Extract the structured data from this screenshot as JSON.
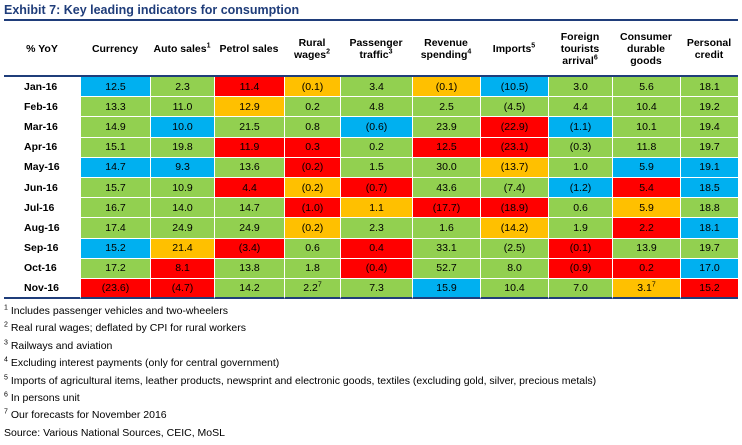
{
  "title": "Exhibit 7: Key leading indicators for consumption",
  "colors": {
    "green": "#92d050",
    "blue": "#00b0f0",
    "red": "#ff0000",
    "orange": "#ffc000",
    "title": "#1f3d7a"
  },
  "headers": [
    {
      "label": "% YoY",
      "sup": ""
    },
    {
      "label": "Currency",
      "sup": ""
    },
    {
      "label": "Auto sales",
      "sup": "1"
    },
    {
      "label": "Petrol sales",
      "sup": ""
    },
    {
      "label": "Rural wages",
      "sup": "2"
    },
    {
      "label": "Passenger traffic",
      "sup": "3"
    },
    {
      "label": "Revenue spending",
      "sup": "4"
    },
    {
      "label": "Imports",
      "sup": "5"
    },
    {
      "label": "Foreign tourists arrival",
      "sup": "6"
    },
    {
      "label": "Consumer durable goods",
      "sup": ""
    },
    {
      "label": "Personal credit",
      "sup": ""
    }
  ],
  "rows": [
    {
      "month": "Jan-16",
      "cells": [
        [
          "12.5",
          "b"
        ],
        [
          "2.3",
          "g"
        ],
        [
          "11.4",
          "r"
        ],
        [
          "(0.1)",
          "o"
        ],
        [
          "3.4",
          "g"
        ],
        [
          "(0.1)",
          "o"
        ],
        [
          "(10.5)",
          "b"
        ],
        [
          "3.0",
          "g"
        ],
        [
          "5.6",
          "g"
        ],
        [
          "18.1",
          "g"
        ]
      ]
    },
    {
      "month": "Feb-16",
      "cells": [
        [
          "13.3",
          "g"
        ],
        [
          "11.0",
          "g"
        ],
        [
          "12.9",
          "o"
        ],
        [
          "0.2",
          "g"
        ],
        [
          "4.8",
          "g"
        ],
        [
          "2.5",
          "g"
        ],
        [
          "(4.5)",
          "g"
        ],
        [
          "4.4",
          "g"
        ],
        [
          "10.4",
          "g"
        ],
        [
          "19.2",
          "g"
        ]
      ]
    },
    {
      "month": "Mar-16",
      "cells": [
        [
          "14.9",
          "g"
        ],
        [
          "10.0",
          "b"
        ],
        [
          "21.5",
          "g"
        ],
        [
          "0.8",
          "g"
        ],
        [
          "(0.6)",
          "b"
        ],
        [
          "23.9",
          "g"
        ],
        [
          "(22.9)",
          "r"
        ],
        [
          "(1.1)",
          "b"
        ],
        [
          "10.1",
          "g"
        ],
        [
          "19.4",
          "g"
        ]
      ]
    },
    {
      "month": "Apr-16",
      "cells": [
        [
          "15.1",
          "g"
        ],
        [
          "19.8",
          "g"
        ],
        [
          "11.9",
          "r"
        ],
        [
          "0.3",
          "r"
        ],
        [
          "0.2",
          "g"
        ],
        [
          "12.5",
          "r"
        ],
        [
          "(23.1)",
          "r"
        ],
        [
          "(0.3)",
          "g"
        ],
        [
          "11.8",
          "g"
        ],
        [
          "19.7",
          "g"
        ]
      ]
    },
    {
      "month": "May-16",
      "cells": [
        [
          "14.7",
          "b"
        ],
        [
          "9.3",
          "b"
        ],
        [
          "13.6",
          "g"
        ],
        [
          "(0.2)",
          "r"
        ],
        [
          "1.5",
          "g"
        ],
        [
          "30.0",
          "g"
        ],
        [
          "(13.7)",
          "o"
        ],
        [
          "1.0",
          "g"
        ],
        [
          "5.9",
          "b"
        ],
        [
          "19.1",
          "b"
        ]
      ]
    },
    {
      "month": "Jun-16",
      "cells": [
        [
          "15.7",
          "g"
        ],
        [
          "10.9",
          "g"
        ],
        [
          "4.4",
          "r"
        ],
        [
          "(0.2)",
          "o"
        ],
        [
          "(0.7)",
          "r"
        ],
        [
          "43.6",
          "g"
        ],
        [
          "(7.4)",
          "g"
        ],
        [
          "(1.2)",
          "b"
        ],
        [
          "5.4",
          "r"
        ],
        [
          "18.5",
          "b"
        ]
      ]
    },
    {
      "month": "Jul-16",
      "cells": [
        [
          "16.7",
          "g"
        ],
        [
          "14.0",
          "g"
        ],
        [
          "14.7",
          "g"
        ],
        [
          "(1.0)",
          "r"
        ],
        [
          "1.1",
          "o"
        ],
        [
          "(17.7)",
          "r"
        ],
        [
          "(18.9)",
          "r"
        ],
        [
          "0.6",
          "g"
        ],
        [
          "5.9",
          "o"
        ],
        [
          "18.8",
          "g"
        ]
      ]
    },
    {
      "month": "Aug-16",
      "cells": [
        [
          "17.4",
          "g"
        ],
        [
          "24.9",
          "g"
        ],
        [
          "24.9",
          "g"
        ],
        [
          "(0.2)",
          "o"
        ],
        [
          "2.3",
          "g"
        ],
        [
          "1.6",
          "g"
        ],
        [
          "(14.2)",
          "o"
        ],
        [
          "1.9",
          "g"
        ],
        [
          "2.2",
          "r"
        ],
        [
          "18.1",
          "b"
        ]
      ]
    },
    {
      "month": "Sep-16",
      "cells": [
        [
          "15.2",
          "b"
        ],
        [
          "21.4",
          "o"
        ],
        [
          "(3.4)",
          "r"
        ],
        [
          "0.6",
          "g"
        ],
        [
          "0.4",
          "r"
        ],
        [
          "33.1",
          "g"
        ],
        [
          "(2.5)",
          "g"
        ],
        [
          "(0.1)",
          "r"
        ],
        [
          "13.9",
          "g"
        ],
        [
          "19.7",
          "g"
        ]
      ]
    },
    {
      "month": "Oct-16",
      "cells": [
        [
          "17.2",
          "g"
        ],
        [
          "8.1",
          "r"
        ],
        [
          "13.8",
          "g"
        ],
        [
          "1.8",
          "g"
        ],
        [
          "(0.4)",
          "r"
        ],
        [
          "52.7",
          "g"
        ],
        [
          "8.0",
          "g"
        ],
        [
          "(0.9)",
          "r"
        ],
        [
          "0.2",
          "r"
        ],
        [
          "17.0",
          "b"
        ]
      ]
    },
    {
      "month": "Nov-16",
      "cells": [
        [
          "(23.6)",
          "r"
        ],
        [
          "(4.7)",
          "r"
        ],
        [
          "14.2",
          "g"
        ],
        [
          "2.2",
          "g"
        ],
        [
          "7.3",
          "g"
        ],
        [
          "15.9",
          "b"
        ],
        [
          "10.4",
          "g"
        ],
        [
          "7.0",
          "g"
        ],
        [
          "3.1",
          "o"
        ],
        [
          "15.2",
          "r"
        ]
      ],
      "sups": {
        "3": "7",
        "8": "7"
      }
    }
  ],
  "footnotes": [
    {
      "num": "1",
      "text": "Includes passenger vehicles and two-wheelers"
    },
    {
      "num": "2",
      "text": "Real rural wages; deflated by CPI for rural workers"
    },
    {
      "num": "3",
      "text": "Railways and aviation"
    },
    {
      "num": "4",
      "text": "Excluding interest payments (only for central government)"
    },
    {
      "num": "5",
      "text": "Imports of agricultural items, leather products, newsprint and electronic goods, textiles (excluding gold, silver, precious metals)"
    },
    {
      "num": "6",
      "text": "In persons unit"
    },
    {
      "num": "7",
      "text": "Our forecasts for November 2016"
    },
    {
      "num": "",
      "text": "Source: Various National Sources, CEIC, MoSL"
    }
  ]
}
